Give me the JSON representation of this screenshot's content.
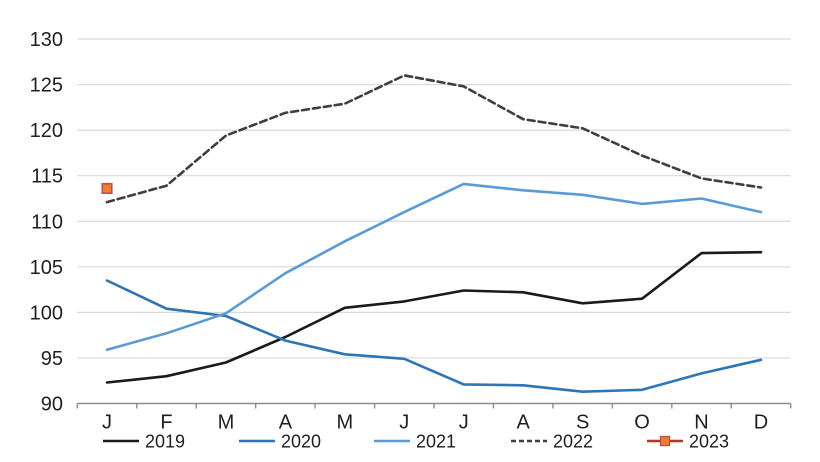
{
  "chart_data": {
    "type": "line",
    "title": "",
    "categories": [
      "J",
      "F",
      "M",
      "A",
      "M",
      "J",
      "J",
      "A",
      "S",
      "O",
      "N",
      "D"
    ],
    "series": [
      {
        "name": "2019",
        "color": "#1a1a1a",
        "style": "solid",
        "values": [
          92.3,
          93.0,
          94.5,
          97.3,
          100.5,
          101.2,
          102.4,
          102.2,
          101.0,
          101.5,
          106.5,
          106.6
        ]
      },
      {
        "name": "2020",
        "color": "#2E75B6",
        "style": "solid",
        "values": [
          103.5,
          100.4,
          99.6,
          96.9,
          95.4,
          94.9,
          92.1,
          92.0,
          91.3,
          91.5,
          93.3,
          94.8
        ]
      },
      {
        "name": "2021",
        "color": "#5B9BD5",
        "style": "solid",
        "values": [
          95.9,
          97.7,
          99.9,
          104.3,
          107.8,
          111.0,
          114.1,
          113.4,
          112.9,
          111.9,
          112.5,
          111.0
        ]
      },
      {
        "name": "2022",
        "color": "#3f3f3f",
        "style": "dashed",
        "values": [
          112.1,
          113.9,
          119.4,
          121.9,
          122.9,
          126.0,
          124.8,
          121.2,
          120.2,
          117.2,
          114.7,
          113.7
        ]
      },
      {
        "name": "2023",
        "color": "#AE3A24",
        "style": "marker-square",
        "marker_fill": "#ED7D31",
        "marker_border": "#C0504D",
        "values": [
          113.6,
          null,
          null,
          null,
          null,
          null,
          null,
          null,
          null,
          null,
          null,
          null
        ]
      }
    ],
    "ylim": [
      90,
      130
    ],
    "y_tick_step": 5,
    "y_tick_labels": [
      "90",
      "95",
      "100",
      "105",
      "110",
      "115",
      "120",
      "125",
      "130"
    ],
    "grid": "horizontal",
    "legend_position": "bottom",
    "legend_labels": [
      "2019",
      "2020",
      "2021",
      "2022",
      "2023"
    ],
    "gridline_color": "#D9D9D9",
    "axis_color": "#8c8c8c",
    "tick_label_color": "#1f1f1f",
    "background_color": "#ffffff"
  }
}
